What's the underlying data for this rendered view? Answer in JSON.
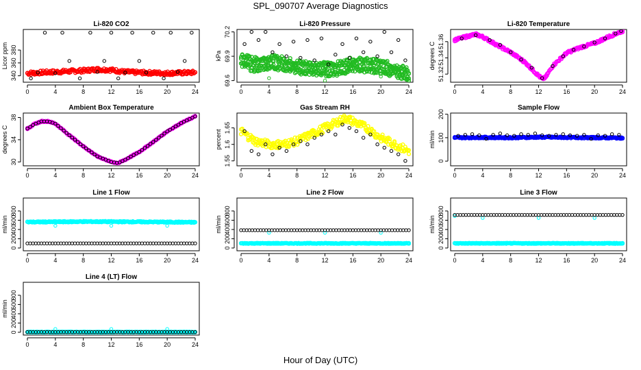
{
  "main_title": "SPL_090707  Average Diagnostics",
  "x_axis_label": "Hour of Day (UTC)",
  "colors": {
    "red": "#ff0000",
    "green": "#22bb22",
    "magenta": "#ff00ff",
    "yellow": "#ffff00",
    "blue": "#0000ff",
    "cyan": "#00ffff",
    "black": "#000000"
  },
  "chart_data": [
    {
      "type": "scatter",
      "title": "Li-820 CO2",
      "ylabel": "Licor ppm",
      "xlim": [
        0,
        24
      ],
      "ylim": [
        330,
        412
      ],
      "xticks": [
        0,
        4,
        8,
        12,
        16,
        20,
        24
      ],
      "yticks": [
        340,
        360,
        380
      ],
      "series": [
        {
          "color": "red",
          "style": "dense",
          "x": [
            0,
            4,
            8,
            10,
            12,
            14,
            16,
            20,
            24
          ],
          "y": [
            344,
            346,
            348,
            350,
            349,
            346,
            345,
            344,
            345
          ],
          "spread": 3
        },
        {
          "color": "black",
          "style": "sparse",
          "x": [
            0.5,
            1.5,
            2.5,
            4,
            5,
            6,
            7.5,
            9,
            10,
            11,
            12,
            13,
            14,
            15,
            16,
            17,
            18,
            19.5,
            20.5,
            21.5,
            22.5,
            23.5
          ],
          "y": [
            336,
            345,
            407,
            344,
            407,
            363,
            336,
            407,
            346,
            363,
            407,
            336,
            345,
            407,
            363,
            345,
            407,
            336,
            407,
            346,
            363,
            407
          ]
        }
      ]
    },
    {
      "type": "scatter",
      "title": "Li-820 Pressure",
      "ylabel": "kPa",
      "xlim": [
        0,
        24
      ],
      "ylim": [
        69.58,
        70.23
      ],
      "xticks": [
        0,
        4,
        8,
        12,
        16,
        20,
        24
      ],
      "yticks": [
        69.6,
        69.9,
        70.2
      ],
      "series": [
        {
          "color": "green",
          "style": "dense",
          "x": [
            0,
            2,
            4,
            6,
            8,
            10,
            12,
            14,
            16,
            18,
            20,
            22,
            24
          ],
          "y": [
            69.9,
            69.85,
            69.88,
            69.86,
            69.82,
            69.8,
            69.79,
            69.8,
            69.85,
            69.84,
            69.82,
            69.78,
            69.72
          ],
          "spread": 0.04
        },
        {
          "color": "green",
          "style": "dense",
          "x": [
            0,
            2,
            4,
            6,
            8,
            10,
            12,
            14,
            16,
            18,
            20,
            22,
            24
          ],
          "y": [
            69.8,
            69.74,
            69.78,
            69.76,
            69.72,
            69.7,
            69.69,
            69.7,
            69.75,
            69.74,
            69.72,
            69.68,
            69.64
          ],
          "spread": 0.04
        },
        {
          "color": "black",
          "style": "sparse",
          "x": [
            0.5,
            1.5,
            2.5,
            3.5,
            4.5,
            5.5,
            6.5,
            7.5,
            8.5,
            9.5,
            10.5,
            11.5,
            12.5,
            13.5,
            14.5,
            15.5,
            16.5,
            17.5,
            18.5,
            19.5,
            20.5,
            21.5,
            22.5,
            23.5
          ],
          "y": [
            70.05,
            70.2,
            70.1,
            70.2,
            69.95,
            70.05,
            69.9,
            70.08,
            69.88,
            70.1,
            69.85,
            70.12,
            69.8,
            69.92,
            70.05,
            69.88,
            70.12,
            69.95,
            70.08,
            69.9,
            70.2,
            69.95,
            70.1,
            69.85
          ]
        },
        {
          "color": "green",
          "style": "sparse",
          "x": [
            4,
            12,
            20
          ],
          "y": [
            69.63,
            69.6,
            69.65
          ]
        }
      ]
    },
    {
      "type": "scatter",
      "title": "Li-820 Temperature",
      "ylabel": "degrees C",
      "xlim": [
        0,
        24
      ],
      "ylim": [
        51.31,
        51.375
      ],
      "xticks": [
        0,
        4,
        8,
        12,
        16,
        20,
        24
      ],
      "yticks": [
        51.32,
        51.34,
        51.36
      ],
      "series": [
        {
          "color": "magenta",
          "style": "dense",
          "x": [
            0,
            2,
            3,
            4,
            6,
            8,
            10,
            12,
            12.5,
            13,
            14,
            16,
            18,
            20,
            22,
            24
          ],
          "y": [
            51.362,
            51.367,
            51.369,
            51.366,
            51.356,
            51.347,
            51.335,
            51.318,
            51.314,
            51.316,
            51.33,
            51.346,
            51.353,
            51.358,
            51.366,
            51.373
          ],
          "spread": 0.0015
        },
        {
          "color": "black",
          "style": "sparse",
          "x": [
            1,
            3,
            5,
            6.5,
            8,
            9.5,
            11,
            12.5,
            14,
            15.5,
            17,
            18.5,
            20,
            21.5,
            23,
            23.8
          ],
          "y": [
            51.364,
            51.368,
            51.362,
            51.356,
            51.347,
            51.338,
            51.328,
            51.315,
            51.33,
            51.342,
            51.35,
            51.354,
            51.359,
            51.364,
            51.37,
            51.373
          ]
        }
      ]
    },
    {
      "type": "scatter",
      "title": "Ambient Box Temperature",
      "ylabel": "degrees C",
      "xlim": [
        0,
        24
      ],
      "ylim": [
        29.3,
        38.8
      ],
      "xticks": [
        0,
        4,
        8,
        12,
        16,
        20,
        24
      ],
      "yticks": [
        30,
        34,
        38
      ],
      "series": [
        {
          "color": "magenta",
          "style": "dense",
          "x": [
            0,
            1,
            2,
            3,
            4,
            6,
            8,
            10,
            12,
            13,
            14,
            16,
            18,
            20,
            22,
            24
          ],
          "y": [
            36.0,
            36.8,
            37.3,
            37.3,
            36.9,
            34.8,
            32.8,
            31.0,
            30.0,
            29.8,
            30.4,
            31.8,
            33.6,
            35.5,
            37.0,
            38.2
          ],
          "spread": 0.1
        },
        {
          "color": "black",
          "style": "line-points",
          "x": [
            0,
            1,
            2,
            3,
            4,
            6,
            8,
            10,
            12,
            13,
            14,
            16,
            18,
            20,
            22,
            24
          ],
          "y": [
            36.0,
            36.8,
            37.3,
            37.3,
            36.9,
            34.8,
            32.8,
            31.0,
            30.0,
            29.8,
            30.4,
            31.8,
            33.6,
            35.5,
            37.0,
            38.2
          ]
        }
      ]
    },
    {
      "type": "scatter",
      "title": "Gas Stream RH",
      "ylabel": "percent",
      "xlim": [
        0,
        24
      ],
      "ylim": [
        1.535,
        1.695
      ],
      "xticks": [
        0,
        4,
        8,
        12,
        16,
        20,
        24
      ],
      "yticks": [
        1.55,
        1.6,
        1.65
      ],
      "series": [
        {
          "color": "yellow",
          "style": "dense",
          "x": [
            0,
            2,
            4,
            6,
            8,
            10,
            12,
            14,
            15,
            16,
            18,
            20,
            22,
            24
          ],
          "y": [
            1.64,
            1.61,
            1.6,
            1.6,
            1.61,
            1.63,
            1.65,
            1.67,
            1.68,
            1.67,
            1.65,
            1.62,
            1.6,
            1.58
          ],
          "spread": 0.012
        },
        {
          "color": "black",
          "style": "sparse",
          "x": [
            0.5,
            1.5,
            2.5,
            3.5,
            4.5,
            5.5,
            6.5,
            7.5,
            8.5,
            9.5,
            10.5,
            11.5,
            12.5,
            13.5,
            14.5,
            15.5,
            16.5,
            17.5,
            18.5,
            19.5,
            20.5,
            21.5,
            22.5,
            23.5
          ],
          "y": [
            1.64,
            1.58,
            1.57,
            1.6,
            1.57,
            1.59,
            1.58,
            1.6,
            1.61,
            1.6,
            1.62,
            1.63,
            1.64,
            1.63,
            1.66,
            1.65,
            1.64,
            1.62,
            1.63,
            1.6,
            1.59,
            1.58,
            1.57,
            1.55
          ]
        }
      ]
    },
    {
      "type": "scatter",
      "title": "Sample Flow",
      "ylabel": "ml/min",
      "xlim": [
        0,
        24
      ],
      "ylim": [
        -20,
        205
      ],
      "xticks": [
        0,
        4,
        8,
        12,
        16,
        20,
        24
      ],
      "yticks": [
        0,
        100,
        200
      ],
      "series": [
        {
          "color": "blue",
          "style": "dense",
          "x": [
            0,
            4,
            8,
            12,
            16,
            20,
            24
          ],
          "y": [
            100,
            101,
            100,
            102,
            101,
            100,
            99
          ],
          "spread": 3
        },
        {
          "color": "black",
          "style": "sparse",
          "x": [
            0.5,
            1.5,
            2.5,
            3.5,
            4.5,
            5.5,
            6.5,
            7.5,
            8.5,
            9.5,
            10.5,
            11.5,
            12.5,
            13.5,
            14.5,
            15.5,
            16.5,
            17.5,
            18.5,
            19.5,
            20.5,
            21.5,
            22.5,
            23.5
          ],
          "y": [
            108,
            112,
            115,
            110,
            95,
            112,
            118,
            110,
            108,
            115,
            112,
            118,
            110,
            108,
            112,
            115,
            110,
            108,
            112,
            95,
            110,
            108,
            115,
            112
          ]
        }
      ]
    },
    {
      "type": "scatter",
      "title": "Line 1 Flow",
      "ylabel": "ml/min",
      "xlim": [
        0,
        24
      ],
      "ylim": [
        -60,
        1080
      ],
      "xticks": [
        0,
        4,
        8,
        12,
        16,
        20,
        24
      ],
      "yticks": [
        0,
        200,
        400,
        600,
        800
      ],
      "series": [
        {
          "color": "cyan",
          "style": "dense",
          "x": [
            0,
            4,
            8,
            12,
            16,
            20,
            24
          ],
          "y": [
            560,
            565,
            570,
            568,
            565,
            560,
            555
          ],
          "spread": 12
        },
        {
          "color": "cyan",
          "style": "sparse",
          "x": [
            4,
            12,
            20
          ],
          "y": [
            480,
            480,
            480
          ]
        },
        {
          "color": "black",
          "style": "line-points",
          "x": [
            0,
            4,
            8,
            12,
            16,
            20,
            24
          ],
          "y": [
            100,
            100,
            100,
            100,
            100,
            100,
            100
          ]
        }
      ]
    },
    {
      "type": "scatter",
      "title": "Line 2 Flow",
      "ylabel": "ml/min",
      "xlim": [
        0,
        24
      ],
      "ylim": [
        -60,
        1080
      ],
      "xticks": [
        0,
        4,
        8,
        12,
        16,
        20,
        24
      ],
      "yticks": [
        0,
        200,
        400,
        600,
        800
      ],
      "series": [
        {
          "color": "cyan",
          "style": "dense",
          "x": [
            0,
            4,
            8,
            12,
            16,
            20,
            24
          ],
          "y": [
            100,
            100,
            100,
            100,
            100,
            100,
            100
          ],
          "spread": 8
        },
        {
          "color": "cyan",
          "style": "sparse",
          "x": [
            4,
            12,
            20
          ],
          "y": [
            330,
            330,
            330
          ]
        },
        {
          "color": "black",
          "style": "line-points",
          "x": [
            0,
            4,
            8,
            12,
            16,
            20,
            24
          ],
          "y": [
            385,
            385,
            385,
            385,
            385,
            385,
            385
          ]
        }
      ]
    },
    {
      "type": "scatter",
      "title": "Line 3 Flow",
      "ylabel": "ml/min",
      "xlim": [
        0,
        24
      ],
      "ylim": [
        -60,
        1080
      ],
      "xticks": [
        0,
        4,
        8,
        12,
        16,
        20,
        24
      ],
      "yticks": [
        0,
        200,
        400,
        600,
        800
      ],
      "series": [
        {
          "color": "cyan",
          "style": "dense",
          "x": [
            0,
            4,
            8,
            12,
            16,
            20,
            24
          ],
          "y": [
            100,
            100,
            100,
            100,
            100,
            100,
            100
          ],
          "spread": 8
        },
        {
          "color": "cyan",
          "style": "sparse",
          "x": [
            0,
            4,
            12,
            20
          ],
          "y": [
            690,
            650,
            650,
            650
          ]
        },
        {
          "color": "black",
          "style": "line-points",
          "x": [
            0,
            4,
            8,
            12,
            16,
            20,
            24
          ],
          "y": [
            715,
            715,
            715,
            715,
            715,
            715,
            715
          ]
        }
      ]
    },
    {
      "type": "scatter",
      "title": "Line 4 (LT) Flow",
      "ylabel": "ml/min",
      "xlim": [
        0,
        24
      ],
      "ylim": [
        -60,
        1080
      ],
      "xticks": [
        0,
        4,
        8,
        12,
        16,
        20,
        24
      ],
      "yticks": [
        0,
        200,
        400,
        600,
        800
      ],
      "series": [
        {
          "color": "cyan",
          "style": "dense",
          "x": [
            0,
            4,
            8,
            12,
            16,
            20,
            24
          ],
          "y": [
            5,
            5,
            5,
            5,
            5,
            5,
            5
          ],
          "spread": 6
        },
        {
          "color": "cyan",
          "style": "sparse",
          "x": [
            0,
            4,
            12,
            20
          ],
          "y": [
            10,
            70,
            70,
            70
          ]
        },
        {
          "color": "black",
          "style": "line-points",
          "x": [
            0,
            4,
            8,
            12,
            16,
            20,
            24
          ],
          "y": [
            5,
            5,
            5,
            5,
            5,
            5,
            5
          ]
        }
      ]
    }
  ]
}
